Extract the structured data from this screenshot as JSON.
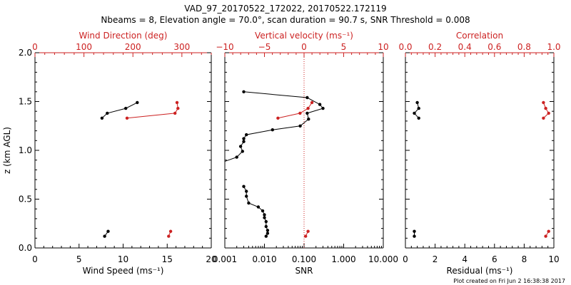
{
  "title_line1": "VAD_97_20170522_172022, 20170522.172119",
  "title_line2": "Nbeams = 8, Elevation angle = 70.0°, scan duration = 90.7 s, SNR Threshold = 0.008",
  "footer": "Plot created on Fri Jun  2 16:38:38 2017",
  "colors": {
    "black": "#000000",
    "red": "#cc2222"
  },
  "chart_data": [
    {
      "type": "line",
      "panel": "wind",
      "ylabel": "z (km AGL)",
      "ylim": [
        0,
        2.0
      ],
      "yticks": [
        "0.0",
        "0.5",
        "1.0",
        "1.5",
        "2.0"
      ],
      "xlabel_bottom": "Wind Speed (ms⁻¹)",
      "xlim_bottom": [
        0,
        20
      ],
      "xticks_bottom": [
        "0",
        "5",
        "10",
        "15",
        "20"
      ],
      "xlabel_top": "Wind Direction (deg)",
      "xlim_top": [
        0,
        360
      ],
      "xticks_top": [
        "0",
        "100",
        "200",
        "300"
      ],
      "series": [
        {
          "axis": "bottom",
          "color": "#000000",
          "segments": [
            [
              [
                7.6,
                1.33
              ],
              [
                8.2,
                1.38
              ],
              [
                10.3,
                1.43
              ],
              [
                11.6,
                1.49
              ]
            ],
            [
              [
                7.9,
                0.12
              ],
              [
                8.3,
                0.17
              ]
            ]
          ]
        },
        {
          "axis": "top",
          "color": "#cc2222",
          "segments": [
            [
              [
                188,
                1.33
              ],
              [
                286,
                1.38
              ],
              [
                292,
                1.43
              ],
              [
                290,
                1.49
              ]
            ],
            [
              [
                273,
                0.12
              ],
              [
                277,
                0.17
              ]
            ]
          ]
        }
      ]
    },
    {
      "type": "line",
      "panel": "snr",
      "ylim": [
        0,
        2.0
      ],
      "xlabel_bottom": "SNR",
      "xscale_bottom": "log",
      "xlim_bottom": [
        0.001,
        10.0
      ],
      "xticks_bottom": [
        "0.001",
        "0.010",
        "0.100",
        "1.000",
        "10.000"
      ],
      "xlabel_top": "Vertical velocity (ms⁻¹)",
      "xlim_top": [
        -10,
        10
      ],
      "xticks_top": [
        "−10",
        "−5",
        "0",
        "5",
        "10"
      ],
      "zero_line_top": 0,
      "series": [
        {
          "axis": "bottom",
          "color": "#000000",
          "segments": [
            [
              [
                0.011,
                0.12
              ],
              [
                0.012,
                0.15
              ],
              [
                0.012,
                0.18
              ],
              [
                0.011,
                0.22
              ],
              [
                0.011,
                0.27
              ],
              [
                0.01,
                0.31
              ],
              [
                0.01,
                0.34
              ],
              [
                0.009,
                0.38
              ],
              [
                0.007,
                0.42
              ],
              [
                0.004,
                0.46
              ],
              [
                0.0035,
                0.53
              ],
              [
                0.0035,
                0.58
              ],
              [
                0.003,
                0.63
              ]
            ],
            [
              [
                0.0009,
                0.88
              ],
              [
                0.002,
                0.93
              ],
              [
                0.0028,
                0.99
              ],
              [
                0.0025,
                1.04
              ],
              [
                0.003,
                1.09
              ],
              [
                0.003,
                1.12
              ],
              [
                0.0035,
                1.16
              ],
              [
                0.016,
                1.21
              ],
              [
                0.08,
                1.25
              ],
              [
                0.13,
                1.32
              ],
              [
                0.12,
                1.38
              ],
              [
                0.3,
                1.43
              ],
              [
                0.25,
                1.47
              ],
              [
                0.12,
                1.54
              ],
              [
                0.003,
                1.6
              ]
            ]
          ]
        },
        {
          "axis": "top",
          "color": "#cc2222",
          "segments": [
            [
              [
                0.2,
                0.12
              ],
              [
                0.5,
                0.17
              ]
            ],
            [
              [
                -3.3,
                1.33
              ],
              [
                -0.5,
                1.38
              ],
              [
                0.5,
                1.43
              ],
              [
                1.0,
                1.49
              ]
            ]
          ]
        }
      ]
    },
    {
      "type": "line",
      "panel": "residual",
      "ylim": [
        0,
        2.0
      ],
      "xlabel_bottom": "Residual (ms⁻¹)",
      "xlim_bottom": [
        0,
        10
      ],
      "xticks_bottom": [
        "0",
        "2",
        "4",
        "6",
        "8",
        "10"
      ],
      "xlabel_top": "Correlation",
      "xlim_top": [
        0,
        1.0
      ],
      "xticks_top": [
        "0.0",
        "0.2",
        "0.4",
        "0.6",
        "0.8",
        "1.0"
      ],
      "series": [
        {
          "axis": "bottom",
          "color": "#000000",
          "segments": [
            [
              [
                0.9,
                1.33
              ],
              [
                0.6,
                1.38
              ],
              [
                0.9,
                1.43
              ],
              [
                0.8,
                1.49
              ]
            ],
            [
              [
                0.6,
                0.12
              ],
              [
                0.6,
                0.17
              ]
            ]
          ]
        },
        {
          "axis": "top",
          "color": "#cc2222",
          "segments": [
            [
              [
                0.93,
                1.33
              ],
              [
                0.965,
                1.38
              ],
              [
                0.945,
                1.43
              ],
              [
                0.93,
                1.49
              ]
            ],
            [
              [
                0.945,
                0.12
              ],
              [
                0.965,
                0.17
              ]
            ]
          ]
        }
      ]
    }
  ]
}
